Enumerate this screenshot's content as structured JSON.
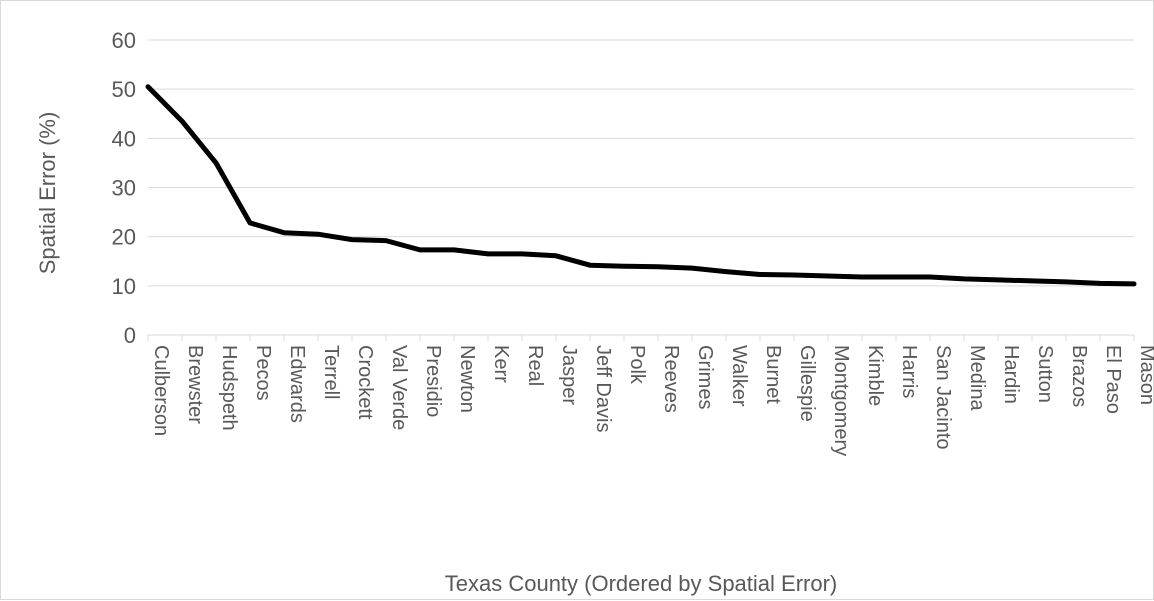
{
  "chart_data": {
    "type": "line",
    "title": "",
    "xlabel": "Texas County (Ordered by Spatial Error)",
    "ylabel": "Spatial Error (%)",
    "ylim": [
      0,
      60
    ],
    "yticks": [
      0,
      10,
      20,
      30,
      40,
      50,
      60
    ],
    "grid": true,
    "legend": "none",
    "line_color": "#000000",
    "categories": [
      "Culberson",
      "Brewster",
      "Hudspeth",
      "Pecos",
      "Edwards",
      "Terrell",
      "Crockett",
      "Val Verde",
      "Presidio",
      "Newton",
      "Kerr",
      "Real",
      "Jasper",
      "Jeff Davis",
      "Polk",
      "Reeves",
      "Grimes",
      "Walker",
      "Burnet",
      "Gillespie",
      "Montgomery",
      "Kimble",
      "Harris",
      "San Jacinto",
      "Medina",
      "Hardin",
      "Sutton",
      "Brazos",
      "El Paso",
      "Mason"
    ],
    "values": [
      50.5,
      43.5,
      35,
      22.8,
      20.8,
      20.5,
      19.4,
      19.2,
      17.3,
      17.3,
      16.5,
      16.5,
      16.1,
      14.2,
      14.0,
      13.9,
      13.6,
      12.9,
      12.3,
      12.2,
      12.0,
      11.8,
      11.8,
      11.8,
      11.4,
      11.2,
      11.0,
      10.8,
      10.5,
      10.4
    ]
  }
}
